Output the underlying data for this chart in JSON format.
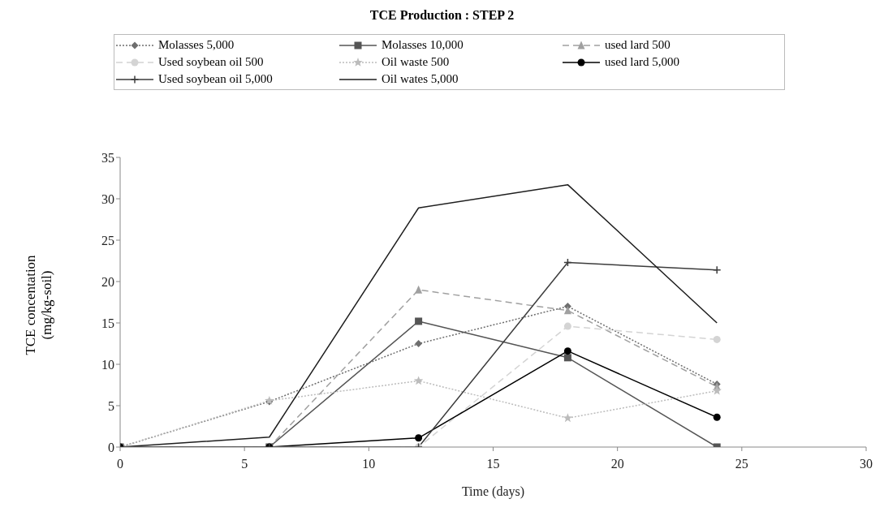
{
  "chart_data": {
    "type": "line",
    "title": "TCE Production : STEP 2",
    "xlabel": "Time (days)",
    "ylabel": "TCE concentation (mg/kg-soil)",
    "x": [
      0,
      6,
      12,
      18,
      24
    ],
    "series": [
      {
        "name": "Molasses 5,000",
        "color": "#6e6e6e",
        "marker": "diamond",
        "line_style": "dotted",
        "values": [
          0,
          5.5,
          12.5,
          17.0,
          7.6
        ]
      },
      {
        "name": "Molasses 10,000",
        "color": "#555555",
        "marker": "square",
        "line_style": "solid",
        "values": [
          0,
          0,
          15.2,
          10.8,
          0
        ]
      },
      {
        "name": "used lard 500",
        "color": "#a0a0a0",
        "marker": "triangle",
        "line_style": "dashed",
        "values": [
          0,
          0,
          19.0,
          16.5,
          7.3
        ]
      },
      {
        "name": "Used soybean oil 500",
        "color": "#d4d4d4",
        "marker": "circle",
        "line_style": "dashed",
        "values": [
          0,
          0,
          0,
          14.6,
          13.0
        ]
      },
      {
        "name": "Oil waste 500",
        "color": "#bcbcbc",
        "marker": "star",
        "line_style": "dotted",
        "values": [
          0,
          5.6,
          8.0,
          3.5,
          6.8
        ]
      },
      {
        "name": "used lard 5,000",
        "color": "#000000",
        "marker": "circle",
        "line_style": "solid",
        "values": [
          0,
          0,
          1.1,
          11.6,
          3.6
        ]
      },
      {
        "name": "Used soybean oil 5,000",
        "color": "#3c3c3c",
        "marker": "cross",
        "line_style": "solid",
        "values": [
          0,
          0,
          0,
          22.3,
          21.4
        ]
      },
      {
        "name": "Oil wates 5,000",
        "color": "#1e1e1e",
        "marker": "none",
        "line_style": "solid",
        "values": [
          0,
          1.2,
          28.9,
          31.7,
          15.0
        ]
      }
    ],
    "xlim": [
      0,
      30
    ],
    "xticks": [
      0,
      5,
      10,
      15,
      20,
      25,
      30
    ],
    "ylim": [
      0,
      35
    ],
    "yticks": [
      0,
      5,
      10,
      15,
      20,
      25,
      30,
      35
    ],
    "grid": false,
    "legend": "top"
  }
}
